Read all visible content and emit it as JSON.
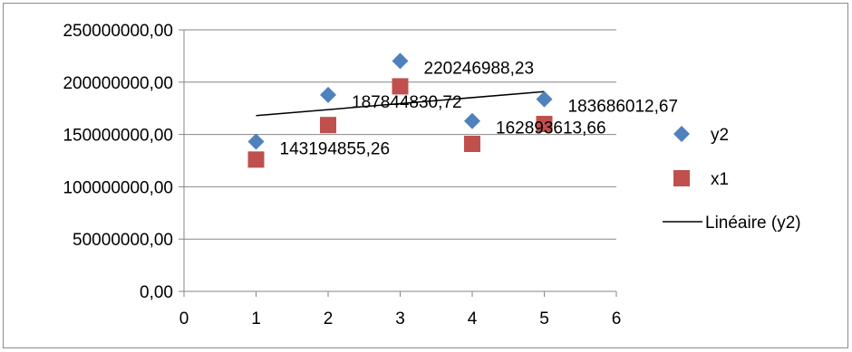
{
  "chart_data": {
    "type": "scatter",
    "xlim": [
      0,
      6
    ],
    "ylim": [
      0,
      250000000
    ],
    "x_ticks": [
      "0",
      "1",
      "2",
      "3",
      "4",
      "5",
      "6"
    ],
    "y_ticks": [
      "0,00",
      "50000000,00",
      "100000000,00",
      "150000000,00",
      "200000000,00",
      "250000000,00"
    ],
    "grid": "horizontal",
    "legend_position": "right",
    "series": [
      {
        "name": "y2",
        "marker": "diamond",
        "color": "#4f81bd",
        "x": [
          1,
          2,
          3,
          4,
          5
        ],
        "y": [
          143194855.26,
          187844830.72,
          220246988.23,
          162893613.66,
          183686012.67
        ],
        "labels": [
          "143194855,26",
          "187844830,72",
          "220246988,23",
          "162893613,66",
          "183686012,67"
        ]
      },
      {
        "name": "x1",
        "marker": "square",
        "color": "#c0504d",
        "x": [
          1,
          2,
          3,
          4,
          5
        ],
        "y": [
          126000000,
          159000000,
          196000000,
          141000000,
          160000000
        ]
      }
    ],
    "trendline": {
      "name": "Linéaire (y2)",
      "of_series": "y2",
      "type": "linear",
      "color": "#000000",
      "x": [
        1,
        5
      ],
      "y": [
        168000000,
        191000000
      ]
    }
  }
}
